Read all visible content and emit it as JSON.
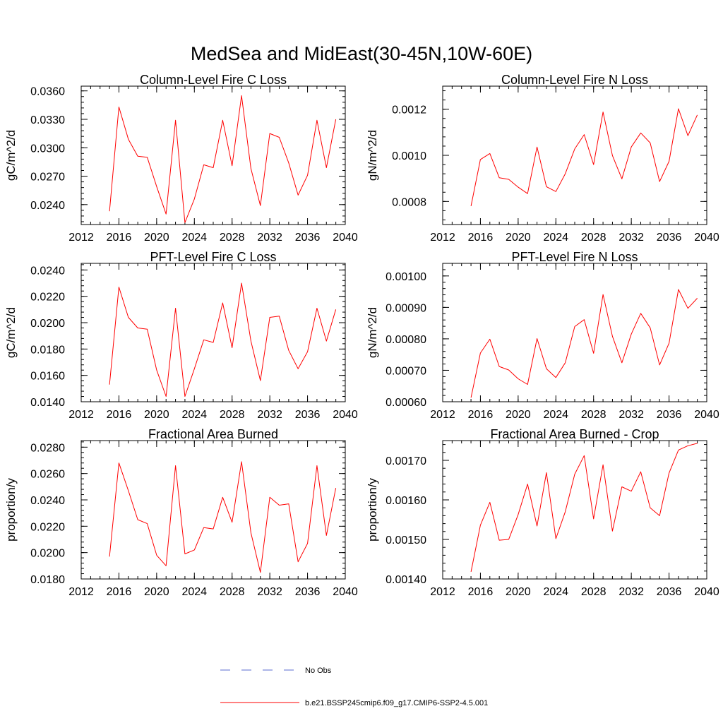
{
  "title": "MedSea and MidEast(30-45N,10W-60E)",
  "line_color": "#ff0000",
  "obs_color": "#5a6bd0",
  "legend": {
    "obs_label": "No Obs",
    "model_label": "b.e21.BSSP245cmip6.f09_g17.CMIP6-SSP2-4.5.001"
  },
  "chart_data": [
    {
      "type": "line",
      "title": "Column-Level Fire C Loss",
      "ylabel": "gC/m^2/d",
      "xlim": [
        2012,
        2040
      ],
      "ylim": [
        0.0219,
        0.0365
      ],
      "xticks": [
        2012,
        2016,
        2020,
        2024,
        2028,
        2032,
        2036,
        2040
      ],
      "xtick_labels": [
        "2012",
        "2016",
        "2020",
        "2024",
        "2028",
        "2032",
        "2036",
        "2040"
      ],
      "yticks": [
        0.024,
        0.027,
        0.03,
        0.033,
        0.036
      ],
      "ytick_labels": [
        "0.0240",
        "0.0270",
        "0.0300",
        "0.0330",
        "0.0360"
      ],
      "x": [
        2015,
        2016,
        2017,
        2018,
        2019,
        2020,
        2021,
        2022,
        2023,
        2024,
        2025,
        2026,
        2027,
        2028,
        2029,
        2030,
        2031,
        2032,
        2033,
        2034,
        2035,
        2036,
        2037,
        2038,
        2039
      ],
      "series": [
        {
          "values": [
            0.0233,
            0.0343,
            0.0309,
            0.0291,
            0.029,
            0.0259,
            0.023,
            0.0329,
            0.0221,
            0.0246,
            0.0282,
            0.0279,
            0.0329,
            0.0281,
            0.0355,
            0.0278,
            0.0239,
            0.0315,
            0.0311,
            0.0284,
            0.025,
            0.0271,
            0.0329,
            0.0279,
            0.033
          ]
        }
      ]
    },
    {
      "type": "line",
      "title": "Column-Level Fire N Loss",
      "ylabel": "gN/m^2/d",
      "xlim": [
        2012,
        2040
      ],
      "ylim": [
        0.0007,
        0.0013
      ],
      "xticks": [
        2012,
        2016,
        2020,
        2024,
        2028,
        2032,
        2036,
        2040
      ],
      "xtick_labels": [
        "2012",
        "2016",
        "2020",
        "2024",
        "2028",
        "2032",
        "2036",
        "2040"
      ],
      "yticks": [
        0.0008,
        0.001,
        0.0012
      ],
      "ytick_labels": [
        "0.0008",
        "0.0010",
        "0.0012"
      ],
      "x": [
        2015,
        2016,
        2017,
        2018,
        2019,
        2020,
        2021,
        2022,
        2023,
        2024,
        2025,
        2026,
        2027,
        2028,
        2029,
        2030,
        2031,
        2032,
        2033,
        2034,
        2035,
        2036,
        2037,
        2038,
        2039
      ],
      "series": [
        {
          "values": [
            0.00078,
            0.000982,
            0.001008,
            0.000903,
            0.000896,
            0.000862,
            0.000834,
            0.001036,
            0.000864,
            0.000843,
            0.00092,
            0.001028,
            0.00109,
            0.00096,
            0.001188,
            0.000999,
            0.000898,
            0.001036,
            0.001097,
            0.001054,
            0.000886,
            0.000974,
            0.001202,
            0.001085,
            0.001175
          ]
        }
      ]
    },
    {
      "type": "line",
      "title": "PFT-Level Fire C Loss",
      "ylabel": "gC/m^2/d",
      "xlim": [
        2012,
        2040
      ],
      "ylim": [
        0.014,
        0.0245
      ],
      "xticks": [
        2012,
        2016,
        2020,
        2024,
        2028,
        2032,
        2036,
        2040
      ],
      "xtick_labels": [
        "2012",
        "2016",
        "2020",
        "2024",
        "2028",
        "2032",
        "2036",
        "2040"
      ],
      "yticks": [
        0.014,
        0.016,
        0.018,
        0.02,
        0.022,
        0.024
      ],
      "ytick_labels": [
        "0.0140",
        "0.0160",
        "0.0180",
        "0.0200",
        "0.0220",
        "0.0240"
      ],
      "x": [
        2015,
        2016,
        2017,
        2018,
        2019,
        2020,
        2021,
        2022,
        2023,
        2024,
        2025,
        2026,
        2027,
        2028,
        2029,
        2030,
        2031,
        2032,
        2033,
        2034,
        2035,
        2036,
        2037,
        2038,
        2039
      ],
      "series": [
        {
          "values": [
            0.0153,
            0.0227,
            0.0204,
            0.0196,
            0.0195,
            0.0164,
            0.0144,
            0.0211,
            0.0144,
            0.0165,
            0.0187,
            0.0185,
            0.0215,
            0.0181,
            0.023,
            0.0186,
            0.0156,
            0.0204,
            0.0205,
            0.0179,
            0.0165,
            0.0178,
            0.0211,
            0.0186,
            0.021
          ]
        }
      ]
    },
    {
      "type": "line",
      "title": "PFT-Level Fire N Loss",
      "ylabel": "gN/m^2/d",
      "xlim": [
        2012,
        2040
      ],
      "ylim": [
        0.0006,
        0.00104
      ],
      "xticks": [
        2012,
        2016,
        2020,
        2024,
        2028,
        2032,
        2036,
        2040
      ],
      "xtick_labels": [
        "2012",
        "2016",
        "2020",
        "2024",
        "2028",
        "2032",
        "2036",
        "2040"
      ],
      "yticks": [
        0.0006,
        0.0007,
        0.0008,
        0.0009,
        0.001
      ],
      "ytick_labels": [
        "0.00060",
        "0.00070",
        "0.00080",
        "0.00090",
        "0.00100"
      ],
      "x": [
        2015,
        2016,
        2017,
        2018,
        2019,
        2020,
        2021,
        2022,
        2023,
        2024,
        2025,
        2026,
        2027,
        2028,
        2029,
        2030,
        2031,
        2032,
        2033,
        2034,
        2035,
        2036,
        2037,
        2038,
        2039
      ],
      "series": [
        {
          "values": [
            0.000613,
            0.000755,
            0.000799,
            0.000712,
            0.000701,
            0.000673,
            0.000655,
            0.000801,
            0.000705,
            0.000677,
            0.000724,
            0.000839,
            0.000861,
            0.000754,
            0.000941,
            0.000808,
            0.000724,
            0.000815,
            0.000881,
            0.000835,
            0.000717,
            0.000786,
            0.000957,
            0.000897,
            0.000929
          ]
        }
      ]
    },
    {
      "type": "line",
      "title": "Fractional Area Burned",
      "ylabel": "proportion/y",
      "xlim": [
        2012,
        2040
      ],
      "ylim": [
        0.018,
        0.0285
      ],
      "xticks": [
        2012,
        2016,
        2020,
        2024,
        2028,
        2032,
        2036,
        2040
      ],
      "xtick_labels": [
        "2012",
        "2016",
        "2020",
        "2024",
        "2028",
        "2032",
        "2036",
        "2040"
      ],
      "yticks": [
        0.018,
        0.02,
        0.022,
        0.024,
        0.026,
        0.028
      ],
      "ytick_labels": [
        "0.0180",
        "0.0200",
        "0.0220",
        "0.0240",
        "0.0260",
        "0.0280"
      ],
      "x": [
        2015,
        2016,
        2017,
        2018,
        2019,
        2020,
        2021,
        2022,
        2023,
        2024,
        2025,
        2026,
        2027,
        2028,
        2029,
        2030,
        2031,
        2032,
        2033,
        2034,
        2035,
        2036,
        2037,
        2038,
        2039
      ],
      "series": [
        {
          "values": [
            0.0197,
            0.0268,
            0.0247,
            0.0225,
            0.0222,
            0.0198,
            0.019,
            0.0266,
            0.0199,
            0.0202,
            0.0219,
            0.0218,
            0.0242,
            0.0223,
            0.0269,
            0.0215,
            0.0185,
            0.0242,
            0.0236,
            0.0237,
            0.0193,
            0.0207,
            0.0266,
            0.0213,
            0.0249
          ]
        }
      ]
    },
    {
      "type": "line",
      "title": "Fractional Area Burned - Crop",
      "ylabel": "proportion/y",
      "xlim": [
        2012,
        2040
      ],
      "ylim": [
        0.0014,
        0.00175
      ],
      "xticks": [
        2012,
        2016,
        2020,
        2024,
        2028,
        2032,
        2036,
        2040
      ],
      "xtick_labels": [
        "2012",
        "2016",
        "2020",
        "2024",
        "2028",
        "2032",
        "2036",
        "2040"
      ],
      "yticks": [
        0.0014,
        0.0015,
        0.0016,
        0.0017
      ],
      "ytick_labels": [
        "0.00140",
        "0.00150",
        "0.00160",
        "0.00170"
      ],
      "x": [
        2015,
        2016,
        2017,
        2018,
        2019,
        2020,
        2021,
        2022,
        2023,
        2024,
        2025,
        2026,
        2027,
        2028,
        2029,
        2030,
        2031,
        2032,
        2033,
        2034,
        2035,
        2036,
        2037,
        2038,
        2039
      ],
      "series": [
        {
          "values": [
            0.001418,
            0.001536,
            0.001594,
            0.001498,
            0.0015,
            0.001563,
            0.00164,
            0.001534,
            0.001669,
            0.001502,
            0.00157,
            0.001665,
            0.001712,
            0.001552,
            0.001689,
            0.001521,
            0.001633,
            0.001622,
            0.001671,
            0.00158,
            0.00156,
            0.001668,
            0.001726,
            0.001737,
            0.001743
          ]
        }
      ]
    }
  ]
}
